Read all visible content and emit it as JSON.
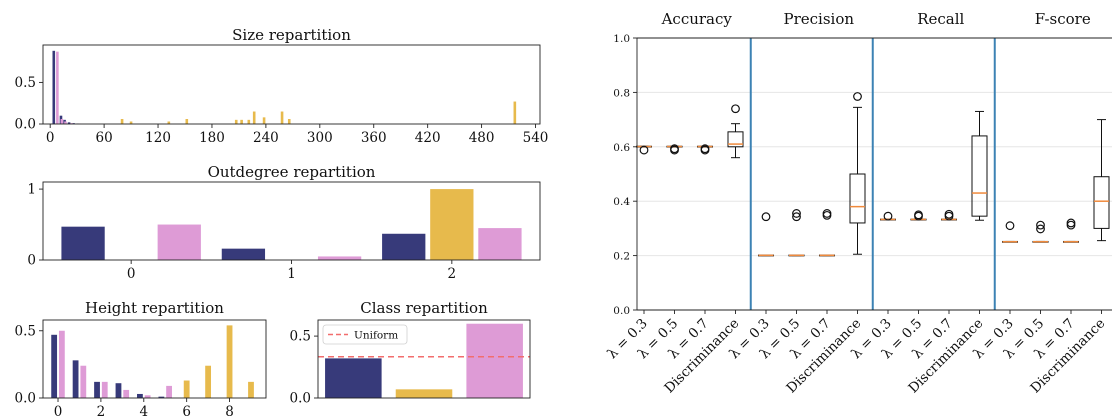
{
  "colors": {
    "navy": "#373a7a",
    "gold": "#e7ba4c",
    "pink": "#de9bd6",
    "median": "#f08a3c",
    "divider": "#3c82b4",
    "uniform": "#f26d6d"
  },
  "chart_data": [
    {
      "id": "size",
      "type": "bar",
      "title": "Size repartition",
      "xlim": [
        -8,
        545
      ],
      "ylim": [
        0,
        0.95
      ],
      "xticks": [
        "0",
        "60",
        "120",
        "180",
        "240",
        "300",
        "360",
        "420",
        "480",
        "540"
      ],
      "yticks": [
        "0.0",
        "0.5"
      ],
      "series": [
        {
          "color": "navy",
          "points": [
            [
              4,
              0.88
            ],
            [
              12,
              0.1
            ],
            [
              16,
              0.05
            ],
            [
              21,
              0.02
            ],
            [
              26,
              0.01
            ],
            [
              31,
              0.005
            ]
          ]
        },
        {
          "color": "pink",
          "points": [
            [
              8,
              0.87
            ],
            [
              13,
              0.06
            ],
            [
              17,
              0.03
            ],
            [
              24,
              0.01
            ],
            [
              33,
              0.005
            ]
          ]
        },
        {
          "color": "gold",
          "points": [
            [
              80,
              0.06
            ],
            [
              90,
              0.03
            ],
            [
              132,
              0.03
            ],
            [
              152,
              0.06
            ],
            [
              207,
              0.05
            ],
            [
              213,
              0.05
            ],
            [
              221,
              0.05
            ],
            [
              227,
              0.15
            ],
            [
              238,
              0.08
            ],
            [
              258,
              0.15
            ],
            [
              266,
              0.06
            ],
            [
              517,
              0.27
            ]
          ]
        }
      ]
    },
    {
      "id": "outdegree",
      "type": "bar",
      "title": "Outdegree repartition",
      "categories": [
        "0",
        "1",
        "2"
      ],
      "ylim": [
        0,
        1.1
      ],
      "yticks": [
        "0",
        "1"
      ],
      "series": [
        {
          "color": "navy",
          "values": [
            0.47,
            0.16,
            0.37
          ]
        },
        {
          "color": "gold",
          "values": [
            0.0,
            0.0,
            1.0
          ]
        },
        {
          "color": "pink",
          "values": [
            0.5,
            0.05,
            0.45
          ]
        }
      ]
    },
    {
      "id": "height",
      "type": "bar",
      "title": "Height repartition",
      "xlim": [
        -0.7,
        9.7
      ],
      "ylim": [
        0,
        0.58
      ],
      "xticks": [
        "0",
        "2",
        "4",
        "6",
        "8"
      ],
      "yticks": [
        "0.0",
        "0.5"
      ],
      "series": [
        {
          "color": "navy",
          "points": [
            [
              0,
              0.47
            ],
            [
              1,
              0.28
            ],
            [
              2,
              0.12
            ],
            [
              3,
              0.11
            ],
            [
              4,
              0.03
            ],
            [
              5,
              0.01
            ]
          ]
        },
        {
          "color": "pink",
          "points": [
            [
              0,
              0.5
            ],
            [
              1,
              0.24
            ],
            [
              2,
              0.12
            ],
            [
              3,
              0.06
            ],
            [
              4,
              0.02
            ],
            [
              5,
              0.09
            ]
          ]
        },
        {
          "color": "gold",
          "points": [
            [
              6,
              0.13
            ],
            [
              7,
              0.24
            ],
            [
              8,
              0.54
            ],
            [
              9,
              0.12
            ]
          ]
        }
      ]
    },
    {
      "id": "class",
      "type": "bar",
      "title": "Class repartition",
      "ylim": [
        0,
        0.63
      ],
      "yticks": [
        "0.0",
        "0.5"
      ],
      "legend": {
        "label": "Uniform",
        "placement": "top-left"
      },
      "uniform": 0.333,
      "series": [
        {
          "color": "navy",
          "values": [
            0.32
          ]
        },
        {
          "color": "gold",
          "values": [
            0.07
          ]
        },
        {
          "color": "pink",
          "values": [
            0.6
          ]
        }
      ]
    },
    {
      "id": "scores",
      "type": "box",
      "group_titles": [
        "Accuracy",
        "Precision",
        "Recall",
        "F-score"
      ],
      "ylim": [
        0.0,
        1.0
      ],
      "yticks": [
        "0.0",
        "0.2",
        "0.4",
        "0.6",
        "0.8",
        "1.0"
      ],
      "categories": [
        "λ = 0.3",
        "λ = 0.5",
        "λ = 0.7",
        "Discriminance"
      ],
      "groups": [
        {
          "boxes": [
            {
              "q1": 0.6,
              "median": 0.601,
              "q3": 0.602,
              "whislo": 0.6,
              "whishi": 0.602,
              "fliers": [
                0.588
              ]
            },
            {
              "q1": 0.6,
              "median": 0.601,
              "q3": 0.602,
              "whislo": 0.6,
              "whishi": 0.602,
              "fliers": [
                0.588,
                0.593
              ]
            },
            {
              "q1": 0.6,
              "median": 0.601,
              "q3": 0.602,
              "whislo": 0.6,
              "whishi": 0.602,
              "fliers": [
                0.588,
                0.593
              ]
            },
            {
              "q1": 0.6,
              "median": 0.61,
              "q3": 0.655,
              "whislo": 0.56,
              "whishi": 0.685,
              "fliers": [
                0.74
              ]
            }
          ]
        },
        {
          "boxes": [
            {
              "q1": 0.2,
              "median": 0.201,
              "q3": 0.202,
              "whislo": 0.2,
              "whishi": 0.202,
              "fliers": [
                0.343
              ]
            },
            {
              "q1": 0.2,
              "median": 0.201,
              "q3": 0.202,
              "whislo": 0.2,
              "whishi": 0.202,
              "fliers": [
                0.343,
                0.355
              ]
            },
            {
              "q1": 0.2,
              "median": 0.201,
              "q3": 0.202,
              "whislo": 0.2,
              "whishi": 0.202,
              "fliers": [
                0.348,
                0.355
              ]
            },
            {
              "q1": 0.32,
              "median": 0.38,
              "q3": 0.5,
              "whislo": 0.205,
              "whishi": 0.745,
              "fliers": [
                0.785
              ]
            }
          ]
        },
        {
          "boxes": [
            {
              "q1": 0.332,
              "median": 0.333,
              "q3": 0.334,
              "whislo": 0.332,
              "whishi": 0.334,
              "fliers": [
                0.345
              ]
            },
            {
              "q1": 0.331,
              "median": 0.333,
              "q3": 0.334,
              "whislo": 0.331,
              "whishi": 0.334,
              "fliers": [
                0.345,
                0.35
              ]
            },
            {
              "q1": 0.332,
              "median": 0.333,
              "q3": 0.334,
              "whislo": 0.332,
              "whishi": 0.334,
              "fliers": [
                0.345,
                0.352
              ]
            },
            {
              "q1": 0.345,
              "median": 0.43,
              "q3": 0.64,
              "whislo": 0.33,
              "whishi": 0.73,
              "fliers": []
            }
          ]
        },
        {
          "boxes": [
            {
              "q1": 0.25,
              "median": 0.251,
              "q3": 0.252,
              "whislo": 0.25,
              "whishi": 0.252,
              "fliers": [
                0.31
              ]
            },
            {
              "q1": 0.25,
              "median": 0.251,
              "q3": 0.252,
              "whislo": 0.25,
              "whishi": 0.252,
              "fliers": [
                0.298,
                0.312
              ]
            },
            {
              "q1": 0.25,
              "median": 0.251,
              "q3": 0.252,
              "whislo": 0.25,
              "whishi": 0.252,
              "fliers": [
                0.312,
                0.32
              ]
            },
            {
              "q1": 0.3,
              "median": 0.4,
              "q3": 0.49,
              "whislo": 0.255,
              "whishi": 0.7,
              "fliers": []
            }
          ]
        }
      ]
    }
  ]
}
